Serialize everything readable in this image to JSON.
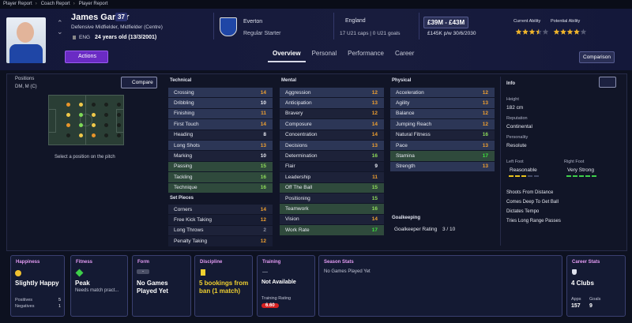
{
  "breadcrumb": [
    "Player Report",
    "Coach Report",
    "Player Report"
  ],
  "player": {
    "name": "James Garner",
    "number": 37,
    "positions": "Defensive Midfielder, Midfielder (Centre)",
    "nationality_code": "ENG",
    "age": "24 years old (13/3/2001)"
  },
  "actions_button": "Actions",
  "club": {
    "name": "Everton",
    "status": "Regular Starter"
  },
  "nation": {
    "name": "England",
    "caps": "17 U21 caps | 0 U21 goals"
  },
  "value": {
    "range": "£39M - £43M",
    "contract": "£145K p/w 30/6/2030"
  },
  "ability": {
    "current_label": "Current Ability",
    "current_stars": 3.5,
    "potential_label": "Potential Ability",
    "potential_stars": 4
  },
  "tabs": [
    "Overview",
    "Personal",
    "Performance",
    "Career"
  ],
  "active_tab": 0,
  "comparison_button": "Comparison",
  "positions_panel": {
    "title": "Positions",
    "positions": "DM, M (C)",
    "compare_button": "Compare",
    "hint": "Select a position on the pitch"
  },
  "technical": {
    "title": "Technical",
    "rows": [
      {
        "name": "Crossing",
        "value": 14,
        "shade": "blue"
      },
      {
        "name": "Dribbling",
        "value": 10,
        "shade": "blue"
      },
      {
        "name": "Finishing",
        "value": 11,
        "shade": "blue"
      },
      {
        "name": "First Touch",
        "value": 14,
        "shade": "blue"
      },
      {
        "name": "Heading",
        "value": 8
      },
      {
        "name": "Long Shots",
        "value": 13,
        "shade": "blue"
      },
      {
        "name": "Marking",
        "value": 10
      },
      {
        "name": "Passing",
        "value": 15,
        "shade": "green"
      },
      {
        "name": "Tackling",
        "value": 16,
        "shade": "green"
      },
      {
        "name": "Technique",
        "value": 16,
        "shade": "green"
      }
    ]
  },
  "set_pieces": {
    "title": "Set Pieces",
    "rows": [
      {
        "name": "Corners",
        "value": 14
      },
      {
        "name": "Free Kick Taking",
        "value": 12
      },
      {
        "name": "Long Throws",
        "value": 2
      },
      {
        "name": "Penalty Taking",
        "value": 12
      }
    ]
  },
  "mental": {
    "title": "Mental",
    "rows": [
      {
        "name": "Aggression",
        "value": 12,
        "shade": "blue"
      },
      {
        "name": "Anticipation",
        "value": 13,
        "shade": "blue"
      },
      {
        "name": "Bravery",
        "value": 12
      },
      {
        "name": "Composure",
        "value": 14,
        "shade": "blue"
      },
      {
        "name": "Concentration",
        "value": 14
      },
      {
        "name": "Decisions",
        "value": 13,
        "shade": "blue"
      },
      {
        "name": "Determination",
        "value": 16
      },
      {
        "name": "Flair",
        "value": 9
      },
      {
        "name": "Leadership",
        "value": 11
      },
      {
        "name": "Off The Ball",
        "value": 15,
        "shade": "green"
      },
      {
        "name": "Positioning",
        "value": 15
      },
      {
        "name": "Teamwork",
        "value": 16,
        "shade": "green"
      },
      {
        "name": "Vision",
        "value": 14
      },
      {
        "name": "Work Rate",
        "value": 17,
        "shade": "green"
      }
    ]
  },
  "physical": {
    "title": "Physical",
    "rows": [
      {
        "name": "Acceleration",
        "value": 12,
        "shade": "blue"
      },
      {
        "name": "Agility",
        "value": 13,
        "shade": "blue"
      },
      {
        "name": "Balance",
        "value": 12,
        "shade": "blue"
      },
      {
        "name": "Jumping Reach",
        "value": 12,
        "shade": "blue"
      },
      {
        "name": "Natural Fitness",
        "value": 16
      },
      {
        "name": "Pace",
        "value": 13,
        "shade": "blue"
      },
      {
        "name": "Stamina",
        "value": 17,
        "shade": "green"
      },
      {
        "name": "Strength",
        "value": 13,
        "shade": "blue"
      }
    ]
  },
  "goalkeeping": {
    "title": "Goalkeeping",
    "label": "Goalkeeper Rating",
    "value": "3 / 10"
  },
  "info": {
    "title": "Info",
    "fields": [
      {
        "label": "Height",
        "value": "182 cm"
      },
      {
        "label": "Reputation",
        "value": "Continental"
      },
      {
        "label": "Personality",
        "value": "Resolute"
      }
    ],
    "left_foot": {
      "label": "Left Foot",
      "value": "Reasonable",
      "level": 3,
      "color": "#e8c21c"
    },
    "right_foot": {
      "label": "Right Foot",
      "value": "Very Strong",
      "level": 5,
      "color": "#3ecf4a"
    },
    "traits": [
      "Shoots From Distance",
      "Comes Deep To Get Ball",
      "Dictates Tempo",
      "Tries Long Range Passes"
    ]
  },
  "cards": {
    "happiness": {
      "title": "Happiness",
      "status": "Slightly Happy",
      "positives_label": "Positives",
      "positives": 5,
      "negatives_label": "Negatives",
      "negatives": 1
    },
    "fitness": {
      "title": "Fitness",
      "status": "Peak",
      "note": "Needs match pract..."
    },
    "form": {
      "title": "Form",
      "badge": "-",
      "status": "No Games Played Yet"
    },
    "discipline": {
      "title": "Discipline",
      "status": "5 bookings from ban (1 match)"
    },
    "training": {
      "title": "Training",
      "dash": "—",
      "status": "Not Available",
      "rating_label": "Training Rating",
      "rating": "6.60"
    },
    "season_stats": {
      "title": "Season Stats",
      "status": "No Games Played Yet"
    },
    "career_stats": {
      "title": "Career Stats",
      "status": "4 Clubs",
      "apps_label": "Apps",
      "apps": 157,
      "goals_label": "Goals",
      "goals": 9
    }
  }
}
